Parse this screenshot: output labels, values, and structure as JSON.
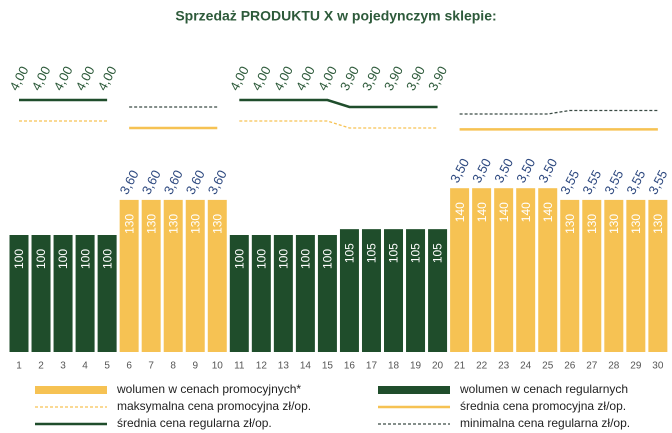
{
  "chart_data": {
    "type": "bar",
    "title": "Sprzedaż PRODUKTU X w pojedynczym sklepie:",
    "categories": [
      "1",
      "2",
      "3",
      "4",
      "5",
      "6",
      "7",
      "8",
      "9",
      "10",
      "11",
      "12",
      "13",
      "14",
      "15",
      "16",
      "17",
      "18",
      "19",
      "20",
      "21",
      "22",
      "23",
      "24",
      "25",
      "26",
      "27",
      "28",
      "29",
      "30"
    ],
    "series": [
      {
        "name": "wolumen w cenach promocyjnych*",
        "color": "#f6c253",
        "values": [
          null,
          null,
          null,
          null,
          null,
          130,
          130,
          130,
          130,
          130,
          null,
          null,
          null,
          null,
          null,
          null,
          null,
          null,
          null,
          null,
          140,
          140,
          140,
          140,
          140,
          130,
          130,
          130,
          130,
          130
        ]
      },
      {
        "name": "wolumen w cenach regularnych",
        "color": "#1f4d2b",
        "values": [
          100,
          100,
          100,
          100,
          100,
          null,
          null,
          null,
          null,
          null,
          100,
          100,
          100,
          100,
          100,
          105,
          105,
          105,
          105,
          105,
          null,
          null,
          null,
          null,
          null,
          null,
          null,
          null,
          null,
          null
        ]
      }
    ],
    "prices": {
      "values": [
        4.0,
        4.0,
        4.0,
        4.0,
        4.0,
        3.6,
        3.6,
        3.6,
        3.6,
        3.6,
        4.0,
        4.0,
        4.0,
        4.0,
        4.0,
        3.9,
        3.9,
        3.9,
        3.9,
        3.9,
        3.5,
        3.5,
        3.5,
        3.5,
        3.5,
        3.55,
        3.55,
        3.55,
        3.55,
        3.55
      ],
      "value_labels": [
        "4,00",
        "4,00",
        "4,00",
        "4,00",
        "4,00",
        "3,60",
        "3,60",
        "3,60",
        "3,60",
        "3,60",
        "4,00",
        "4,00",
        "4,00",
        "4,00",
        "4,00",
        "3,90",
        "3,90",
        "3,90",
        "3,90",
        "3,90",
        "3,50",
        "3,50",
        "3,50",
        "3,50",
        "3,50",
        "3,55",
        "3,55",
        "3,55",
        "3,55",
        "3,55"
      ]
    },
    "lines": [
      {
        "name": "maksymalna cena promocyjna zł/op.",
        "color": "#f6c253",
        "dashed": true,
        "values": [
          3.7,
          3.7,
          3.7,
          3.7,
          3.7,
          null,
          null,
          null,
          null,
          null,
          3.7,
          3.7,
          3.7,
          3.7,
          3.7,
          3.6,
          3.6,
          3.6,
          3.6,
          3.6,
          null,
          null,
          null,
          null,
          null,
          null,
          null,
          null,
          null,
          null
        ]
      },
      {
        "name": "średnia cena promocyjna zł/op.",
        "color": "#f6c253",
        "dashed": false,
        "values": [
          null,
          null,
          null,
          null,
          null,
          3.6,
          3.6,
          3.6,
          3.6,
          3.6,
          null,
          null,
          null,
          null,
          null,
          null,
          null,
          null,
          null,
          null,
          3.58,
          3.58,
          3.58,
          3.58,
          3.58,
          3.58,
          3.58,
          3.58,
          3.58,
          3.58
        ]
      },
      {
        "name": "średnia cena regularna zł/op.",
        "color": "#1f4d2b",
        "dashed": false,
        "values": [
          4.0,
          4.0,
          4.0,
          4.0,
          4.0,
          null,
          null,
          null,
          null,
          null,
          4.0,
          4.0,
          4.0,
          4.0,
          4.0,
          3.9,
          3.9,
          3.9,
          3.9,
          3.9,
          null,
          null,
          null,
          null,
          null,
          null,
          null,
          null,
          null,
          null
        ]
      },
      {
        "name": "minimalna cena regularna zł/op.",
        "color": "#3a4a44",
        "dashed": true,
        "values": [
          null,
          null,
          null,
          null,
          null,
          3.9,
          3.9,
          3.9,
          3.9,
          3.9,
          null,
          null,
          null,
          null,
          null,
          null,
          null,
          null,
          null,
          null,
          3.8,
          3.8,
          3.8,
          3.8,
          3.8,
          3.85,
          3.85,
          3.85,
          3.85,
          3.85
        ]
      }
    ]
  }
}
